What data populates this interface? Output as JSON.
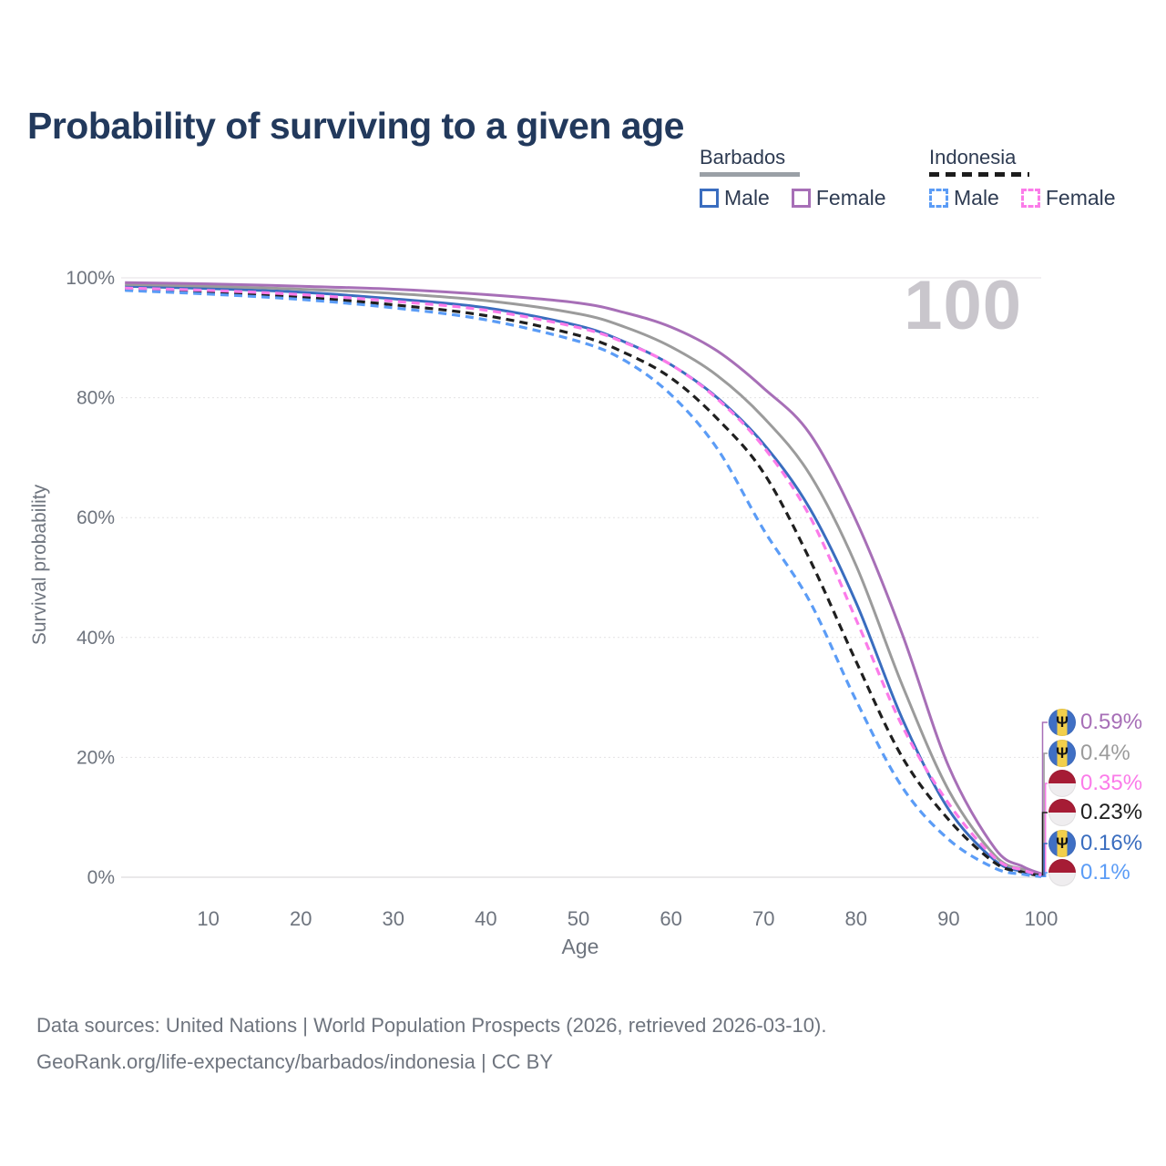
{
  "page": {
    "title": "Probability of surviving to a given age"
  },
  "watermark": "100",
  "legend": {
    "groups": [
      {
        "label": "Barbados",
        "underline_color": "#9aa0a6",
        "underline_style": "solid",
        "items": [
          {
            "label": "Male",
            "color": "#3a6dbf",
            "dash": false
          },
          {
            "label": "Female",
            "color": "#a76fb7",
            "dash": false
          }
        ]
      },
      {
        "label": "Indonesia",
        "underline_color": "#1c1c1c",
        "underline_style": "dashed",
        "items": [
          {
            "label": "Male",
            "color": "#5b9cf6",
            "dash": true
          },
          {
            "label": "Female",
            "color": "#fb7be9",
            "dash": true
          }
        ]
      }
    ]
  },
  "chart_data": {
    "type": "line",
    "title": "Probability of surviving to a given age",
    "xlabel": "Age",
    "ylabel": "Survival probability",
    "xlim": [
      0,
      100
    ],
    "ylim": [
      0,
      100
    ],
    "grid": true,
    "legend_position": "top-right",
    "x_ticks": [
      10,
      20,
      30,
      40,
      50,
      60,
      70,
      80,
      90,
      100
    ],
    "y_ticks": [
      0,
      20,
      40,
      60,
      80,
      100
    ],
    "ages": [
      1,
      10,
      20,
      30,
      40,
      50,
      55,
      60,
      65,
      70,
      75,
      80,
      85,
      90,
      95,
      98,
      100
    ],
    "series": [
      {
        "name": "Barbados Male",
        "country": "barbados",
        "sex": "male",
        "color": "#3a6dbf",
        "dash": false,
        "end_label": "0.16%",
        "values": [
          98.6,
          98.2,
          97.6,
          96.5,
          95.0,
          92.0,
          89.3,
          85.5,
          80.0,
          72.3,
          61.5,
          45.8,
          26.4,
          11.3,
          2.8,
          0.95,
          0.16
        ]
      },
      {
        "name": "Barbados",
        "country": "barbados",
        "sex": "both",
        "color": "#9b9b9b",
        "dash": false,
        "end_label": "0.4%",
        "values": [
          98.9,
          98.6,
          98.1,
          97.4,
          96.2,
          94.0,
          91.8,
          88.5,
          83.7,
          76.7,
          67.2,
          52.0,
          32.0,
          14.5,
          3.6,
          1.3,
          0.4
        ]
      },
      {
        "name": "Barbados Female",
        "country": "barbados",
        "sex": "female",
        "color": "#a76fb7",
        "dash": false,
        "end_label": "0.59%",
        "values": [
          99.2,
          99.0,
          98.6,
          98.1,
          97.2,
          95.8,
          94.2,
          91.8,
          87.8,
          81.6,
          74.0,
          59.5,
          40.5,
          18.5,
          4.8,
          1.8,
          0.59
        ]
      },
      {
        "name": "Indonesia",
        "country": "indonesia",
        "sex": "both",
        "color": "#1f1f1f",
        "dash": true,
        "end_label": "0.23%",
        "values": [
          98.1,
          97.6,
          96.8,
          95.5,
          93.7,
          90.4,
          87.5,
          83.3,
          76.5,
          67.5,
          53.0,
          36.0,
          20.0,
          9.6,
          2.4,
          0.85,
          0.23
        ]
      },
      {
        "name": "Indonesia Male",
        "country": "indonesia",
        "sex": "male",
        "color": "#5b9cf6",
        "dash": true,
        "end_label": "0.1%",
        "values": [
          97.9,
          97.3,
          96.4,
          95.0,
          93.0,
          89.4,
          86.2,
          80.5,
          71.5,
          58.0,
          46.0,
          29.5,
          15.0,
          6.3,
          1.5,
          0.5,
          0.1
        ]
      },
      {
        "name": "Indonesia Female",
        "country": "indonesia",
        "sex": "female",
        "color": "#fb7be9",
        "dash": true,
        "end_label": "0.35%",
        "values": [
          98.3,
          97.9,
          97.2,
          96.1,
          94.6,
          91.7,
          89.2,
          85.5,
          79.8,
          71.8,
          60.2,
          43.0,
          25.2,
          12.3,
          3.2,
          1.2,
          0.35
        ]
      }
    ]
  },
  "footer": {
    "line1": "Data sources: United Nations | World Population Prospects (2026, retrieved 2026-03-10).",
    "line2": "GeoRank.org/life-expectancy/barbados/indonesia | CC BY"
  }
}
